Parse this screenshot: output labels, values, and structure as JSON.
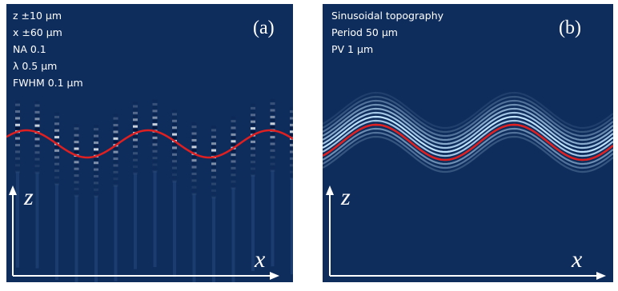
{
  "panels": [
    {
      "label": "(a)",
      "lines": [
        "z ±10 µm",
        "x ±60 µm",
        "NA 0.1",
        "λ 0.5 µm",
        "FWHM 0.1 µm"
      ],
      "z_axis": "z",
      "x_axis": "x"
    },
    {
      "label": "(b)",
      "lines": [
        "Sinusoidal topography",
        "Period 50 µm",
        "PV 1 µm"
      ],
      "z_axis": "z",
      "x_axis": "x"
    }
  ]
}
